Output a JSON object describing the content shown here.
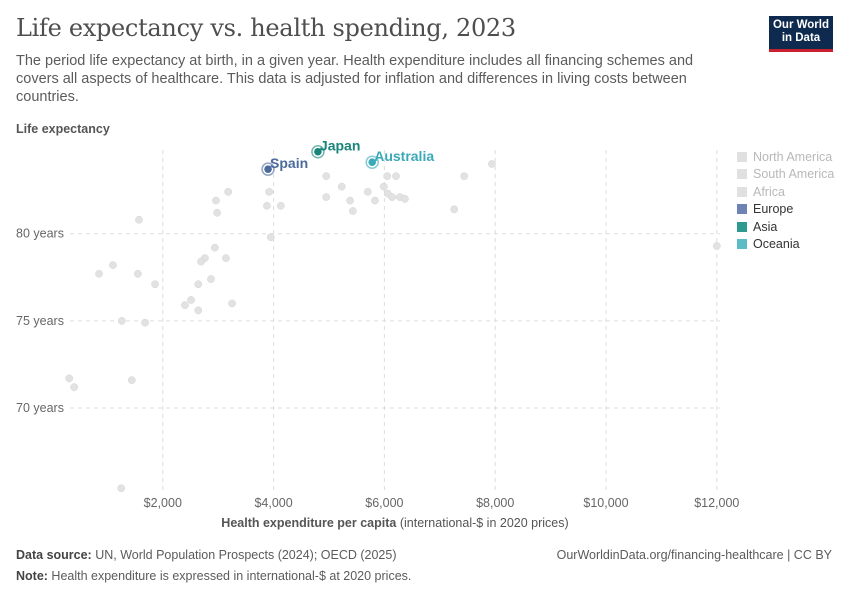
{
  "header": {
    "title": "Life expectancy vs. health spending, 2023",
    "subtitle": "The period life expectancy at birth, in a given year. Health expenditure includes all financing schemes and covers all aspects of healthcare. This data is adjusted for inflation and differences in living costs between countries.",
    "logo": "Our World in Data"
  },
  "footer": {
    "source_label": "Data source:",
    "source": " UN, World Population Prospects (2024); OECD (2025)",
    "url": "OurWorldinData.org/financing-healthcare | CC BY",
    "note_label": "Note:",
    "note": " Health expenditure is expressed in international-$ at 2020 prices."
  },
  "chart_data": {
    "type": "scatter",
    "title": "Life expectancy vs. health spending, 2023",
    "ylabel": "Life expectancy",
    "xlabel_bold": "Health expenditure per capita",
    "xlabel_rest": " (international-$ in 2020 prices)",
    "xlim": [
      0,
      12100
    ],
    "ylim": [
      65.3,
      84.8
    ],
    "xticks": [
      {
        "v": 2000,
        "label": "$2,000"
      },
      {
        "v": 4000,
        "label": "$4,000"
      },
      {
        "v": 6000,
        "label": "$6,000"
      },
      {
        "v": 8000,
        "label": "$8,000"
      },
      {
        "v": 10000,
        "label": "$10,000"
      },
      {
        "v": 12000,
        "label": "$12,000"
      }
    ],
    "yticks": [
      {
        "v": 70,
        "label": "70 years"
      },
      {
        "v": 75,
        "label": "75 years"
      },
      {
        "v": 80,
        "label": "80 years"
      }
    ],
    "grid": true,
    "legend_position": "right",
    "legend": [
      {
        "name": "North America",
        "color": "#e0e0e0",
        "muted": true
      },
      {
        "name": "South America",
        "color": "#e0e0e0",
        "muted": true
      },
      {
        "name": "Africa",
        "color": "#e0e0e0",
        "muted": true
      },
      {
        "name": "Europe",
        "color": "#6d83b4"
      },
      {
        "name": "Asia",
        "color": "#2c9a8f"
      },
      {
        "name": "Oceania",
        "color": "#5bbcc8"
      }
    ],
    "background_points": [
      [
        1570,
        80.8
      ],
      [
        3180,
        82.4
      ],
      [
        2960,
        81.9
      ],
      [
        2980,
        81.2
      ],
      [
        3920,
        82.4
      ],
      [
        3880,
        81.6
      ],
      [
        4130,
        81.6
      ],
      [
        3950,
        79.8
      ],
      [
        4950,
        83.3
      ],
      [
        4950,
        82.1
      ],
      [
        2940,
        79.2
      ],
      [
        2760,
        78.6
      ],
      [
        2690,
        78.4
      ],
      [
        3140,
        78.6
      ],
      [
        850,
        77.7
      ],
      [
        1100,
        78.2
      ],
      [
        1550,
        77.7
      ],
      [
        1860,
        77.1
      ],
      [
        2870,
        77.4
      ],
      [
        2640,
        77.1
      ],
      [
        2400,
        75.9
      ],
      [
        2510,
        76.2
      ],
      [
        2640,
        75.6
      ],
      [
        3250,
        76.0
      ],
      [
        1260,
        75.0
      ],
      [
        1680,
        74.9
      ],
      [
        310,
        71.7
      ],
      [
        400,
        71.2
      ],
      [
        1440,
        71.6
      ],
      [
        1250,
        65.4
      ],
      [
        5230,
        82.7
      ],
      [
        5380,
        81.9
      ],
      [
        5430,
        81.3
      ],
      [
        5700,
        82.4
      ],
      [
        5830,
        81.9
      ],
      [
        5990,
        82.7
      ],
      [
        6050,
        83.3
      ],
      [
        6210,
        83.3
      ],
      [
        6060,
        82.3
      ],
      [
        6140,
        82.1
      ],
      [
        6280,
        82.1
      ],
      [
        6370,
        82.0
      ],
      [
        7260,
        81.4
      ],
      [
        7440,
        83.3
      ],
      [
        7940,
        84.0
      ],
      [
        12000,
        79.3
      ]
    ],
    "highlighted": [
      {
        "label": "Spain",
        "x": 3900,
        "y": 83.7,
        "color": "#4c6a9c"
      },
      {
        "label": "Japan",
        "x": 4800,
        "y": 84.7,
        "color": "#18857a"
      },
      {
        "label": "Australia",
        "x": 5780,
        "y": 84.1,
        "color": "#3aa9b8"
      }
    ]
  }
}
